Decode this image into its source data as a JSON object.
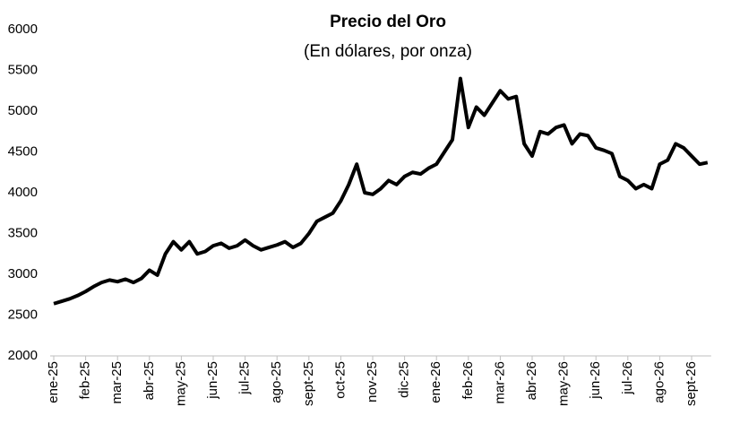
{
  "chart_data": {
    "type": "line",
    "title": "Precio del Oro",
    "subtitle": "(En dólares, por onza)",
    "categories": [
      "ene-25",
      null,
      null,
      null,
      "feb-25",
      null,
      null,
      null,
      "mar-25",
      null,
      null,
      null,
      "abr-25",
      null,
      null,
      null,
      "may-25",
      null,
      null,
      null,
      "jun-25",
      null,
      null,
      null,
      "jul-25",
      null,
      null,
      null,
      "ago-25",
      null,
      null,
      null,
      "sept-25",
      null,
      null,
      null,
      "oct-25",
      null,
      null,
      null,
      "nov-25",
      null,
      null,
      null,
      "dic-25",
      null,
      null,
      null,
      "ene-26",
      null,
      null,
      null,
      "feb-26",
      null,
      null,
      null,
      "mar-26",
      null,
      null,
      null,
      "abr-26",
      null,
      null,
      null,
      "may-26",
      null,
      null,
      null,
      "jun-26",
      null,
      null,
      null,
      "jul-26",
      null,
      null,
      null,
      "ago-26",
      null,
      null,
      null,
      "sept-26",
      null,
      null
    ],
    "series": [
      {
        "name": "Precio del Oro",
        "color": "#000000",
        "values": [
          2640,
          2670,
          2700,
          2740,
          2790,
          2850,
          2900,
          2930,
          2910,
          2940,
          2900,
          2950,
          3050,
          2990,
          3250,
          3400,
          3300,
          3400,
          3250,
          3280,
          3350,
          3380,
          3320,
          3350,
          3420,
          3350,
          3300,
          3330,
          3360,
          3400,
          3330,
          3380,
          3500,
          3650,
          3700,
          3750,
          3900,
          4100,
          4350,
          4000,
          3980,
          4050,
          4150,
          4100,
          4200,
          4250,
          4230,
          4300,
          4350,
          4500,
          4650,
          5400,
          4800,
          5050,
          4950,
          5100,
          5250,
          5150,
          5180,
          4600,
          4450,
          4750,
          4720,
          4800,
          4830,
          4600,
          4720,
          4700,
          4550,
          4520,
          4480,
          4200,
          4150,
          4050,
          4100,
          4050,
          4350,
          4400,
          4600,
          4550,
          4450,
          4350,
          4370
        ]
      }
    ],
    "ylim": [
      2000,
      6000
    ],
    "yticks": [
      2000,
      2500,
      3000,
      3500,
      4000,
      4500,
      5000,
      5500,
      6000
    ]
  }
}
